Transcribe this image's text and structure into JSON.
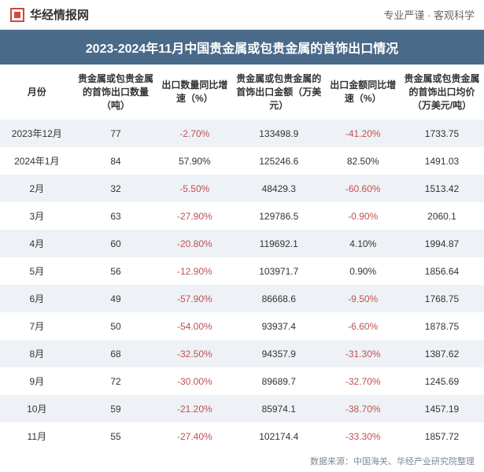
{
  "header": {
    "logo_text": "华经情报网",
    "tagline": "专业严谨 · 客观科学"
  },
  "title": "2023-2024年11月中国贵金属或包贵金属的首饰出口情况",
  "columns": [
    "月份",
    "贵金属或包贵金属的首饰出口数量（吨）",
    "出口数量同比增速（%）",
    "贵金属或包贵金属的首饰出口金额（万美元）",
    "出口金额同比增速（%）",
    "贵金属或包贵金属的首饰出口均价（万美元/吨）"
  ],
  "rows": [
    {
      "month": "2023年12月",
      "qty": "77",
      "qty_growth": "-2.70%",
      "qty_growth_neg": true,
      "amount": "133498.9",
      "amt_growth": "-41.20%",
      "amt_growth_neg": true,
      "avg": "1733.75"
    },
    {
      "month": "2024年1月",
      "qty": "84",
      "qty_growth": "57.90%",
      "qty_growth_neg": false,
      "amount": "125246.6",
      "amt_growth": "82.50%",
      "amt_growth_neg": false,
      "avg": "1491.03"
    },
    {
      "month": "2月",
      "qty": "32",
      "qty_growth": "-5.50%",
      "qty_growth_neg": true,
      "amount": "48429.3",
      "amt_growth": "-60.60%",
      "amt_growth_neg": true,
      "avg": "1513.42"
    },
    {
      "month": "3月",
      "qty": "63",
      "qty_growth": "-27.90%",
      "qty_growth_neg": true,
      "amount": "129786.5",
      "amt_growth": "-0.90%",
      "amt_growth_neg": true,
      "avg": "2060.1"
    },
    {
      "month": "4月",
      "qty": "60",
      "qty_growth": "-20.80%",
      "qty_growth_neg": true,
      "amount": "119692.1",
      "amt_growth": "4.10%",
      "amt_growth_neg": false,
      "avg": "1994.87"
    },
    {
      "month": "5月",
      "qty": "56",
      "qty_growth": "-12.90%",
      "qty_growth_neg": true,
      "amount": "103971.7",
      "amt_growth": "0.90%",
      "amt_growth_neg": false,
      "avg": "1856.64"
    },
    {
      "month": "6月",
      "qty": "49",
      "qty_growth": "-57.90%",
      "qty_growth_neg": true,
      "amount": "86668.6",
      "amt_growth": "-9.50%",
      "amt_growth_neg": true,
      "avg": "1768.75"
    },
    {
      "month": "7月",
      "qty": "50",
      "qty_growth": "-54.00%",
      "qty_growth_neg": true,
      "amount": "93937.4",
      "amt_growth": "-6.60%",
      "amt_growth_neg": true,
      "avg": "1878.75"
    },
    {
      "month": "8月",
      "qty": "68",
      "qty_growth": "-32.50%",
      "qty_growth_neg": true,
      "amount": "94357.9",
      "amt_growth": "-31.30%",
      "amt_growth_neg": true,
      "avg": "1387.62"
    },
    {
      "month": "9月",
      "qty": "72",
      "qty_growth": "-30.00%",
      "qty_growth_neg": true,
      "amount": "89689.7",
      "amt_growth": "-32.70%",
      "amt_growth_neg": true,
      "avg": "1245.69"
    },
    {
      "month": "10月",
      "qty": "59",
      "qty_growth": "-21.20%",
      "qty_growth_neg": true,
      "amount": "85974.1",
      "amt_growth": "-38.70%",
      "amt_growth_neg": true,
      "avg": "1457.19"
    },
    {
      "month": "11月",
      "qty": "55",
      "qty_growth": "-27.40%",
      "qty_growth_neg": true,
      "amount": "102174.4",
      "amt_growth": "-33.30%",
      "amt_growth_neg": true,
      "avg": "1857.72"
    }
  ],
  "footer": "数据来源：中国海关、华经产业研究院整理",
  "colors": {
    "title_bg": "#4a6a8a",
    "row_odd": "#eef2f6",
    "negative": "#c05050"
  }
}
